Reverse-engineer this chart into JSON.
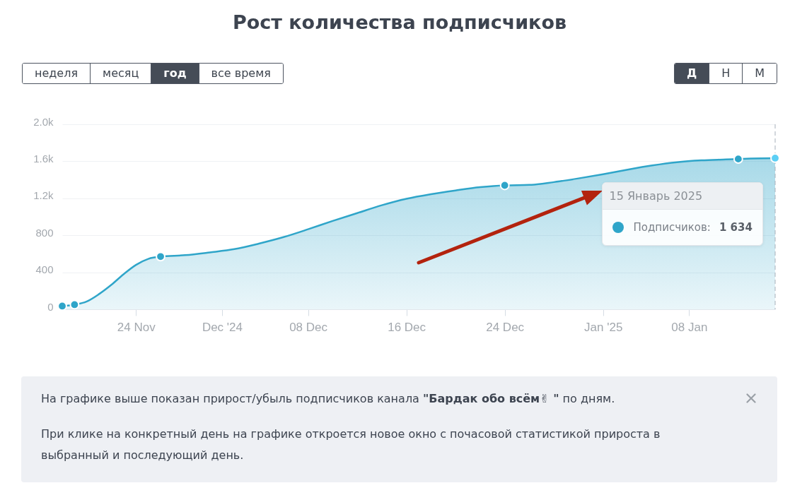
{
  "chart_data": {
    "type": "area",
    "title": "Рост количества подписчиков",
    "x": [
      "2024-11-18",
      "2024-11-19",
      "2024-11-20",
      "2024-11-21",
      "2024-11-22",
      "2024-11-23",
      "2024-11-24",
      "2024-11-25",
      "2024-11-26",
      "2024-11-28",
      "2024-11-30",
      "2024-12-02",
      "2024-12-04",
      "2024-12-06",
      "2024-12-08",
      "2024-12-10",
      "2024-12-12",
      "2024-12-14",
      "2024-12-16",
      "2024-12-18",
      "2024-12-20",
      "2024-12-22",
      "2024-12-24",
      "2024-12-26",
      "2024-12-28",
      "2024-12-30",
      "2025-01-01",
      "2025-01-03",
      "2025-01-05",
      "2025-01-07",
      "2025-01-09",
      "2025-01-11",
      "2025-01-12",
      "2025-01-13",
      "2025-01-15"
    ],
    "series": [
      {
        "color": "#2fa5c9",
        "values": [
          35,
          50,
          85,
          165,
          265,
          380,
          480,
          545,
          570,
          585,
          615,
          650,
          710,
          780,
          865,
          955,
          1040,
          1125,
          1195,
          1245,
          1285,
          1320,
          1340,
          1345,
          1375,
          1415,
          1460,
          1510,
          1555,
          1590,
          1610,
          1620,
          1625,
          1630,
          1634
        ]
      },
      {
        "type": "scatter",
        "marker": "circle",
        "x": [
          "2024-11-18",
          "2024-11-19",
          "2024-11-26",
          "2024-12-24",
          "2025-01-12",
          "2025-01-15"
        ],
        "values": [
          35,
          50,
          570,
          1340,
          1625,
          1634
        ],
        "colors": [
          "#2fa5c9",
          "#2fa5c9",
          "#2fa5c9",
          "#2fa5c9",
          "#2fa5c9",
          "#5ccff5"
        ]
      }
    ],
    "xlim": [
      "2024-11-18",
      "2025-01-15"
    ],
    "xticks": [
      {
        "value": "2024-11-24",
        "label": "24 Nov"
      },
      {
        "value": "2024-12-01",
        "label": "Dec '24"
      },
      {
        "value": "2024-12-08",
        "label": "08 Dec"
      },
      {
        "value": "2024-12-16",
        "label": "16 Dec"
      },
      {
        "value": "2024-12-24",
        "label": "24 Dec"
      },
      {
        "value": "2025-01-01",
        "label": "Jan '25"
      },
      {
        "value": "2025-01-08",
        "label": "08 Jan"
      }
    ],
    "ylim": [
      0,
      2000
    ],
    "yticks": [
      0,
      400,
      800,
      {
        "value": 1200,
        "label": "1.2k"
      },
      {
        "value": 1600,
        "label": "1.6k"
      },
      {
        "value": 2000,
        "label": "2.0k"
      }
    ],
    "grid": "y",
    "ref_lines": [
      {
        "axis": "x",
        "value": "2025-01-15",
        "color": "#a7b0ba",
        "line_style": "dashed"
      }
    ],
    "annotations": [
      "15 Январь 2025",
      "Подписчиков:",
      "1 634",
      "неделя",
      "месяц",
      "год",
      "все время",
      "Д",
      "Н",
      "М",
      "На графике выше показан прирост/убыль подписчиков канала",
      "\"Бардак обо всём✌ \"",
      "по дням.",
      "При клике на конкретный день на графике откроется новое окно с почасовой статистикой прироста в выбранный и последующий день."
    ]
  }
}
